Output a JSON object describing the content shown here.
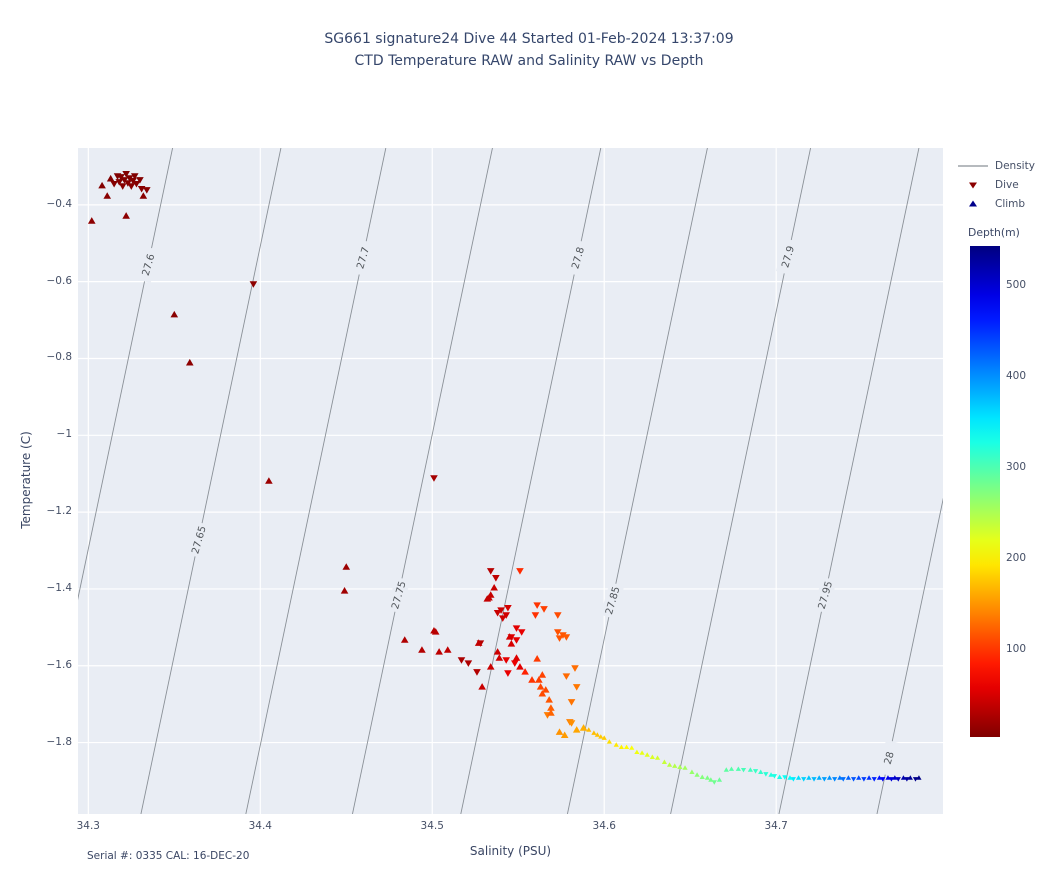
{
  "title": {
    "line1": "SG661 signature24 Dive 44 Started 01-Feb-2024 13:37:09",
    "line2": "CTD Temperature RAW and Salinity RAW vs Depth"
  },
  "footer_note": "Serial #: 0335  CAL: 16-DEC-20",
  "colors": {
    "page_bg": "#ffffff",
    "plot_bg": "#e9edf4",
    "grid": "#ffffff",
    "contour_line": "#8a9097",
    "contour_label": "#52575c",
    "title_text": "#35466b",
    "tick_text": "#454f66",
    "dive_legend": "#8b0000",
    "climb_legend": "#00008b"
  },
  "chart_data": {
    "type": "scatter",
    "title": "SG661 signature24 Dive 44 Started 01-Feb-2024 13:37:09 / CTD Temperature RAW and Salinity RAW vs Depth",
    "xlabel": "Salinity (PSU)",
    "ylabel": "Temperature (C)",
    "xlim": [
      34.294,
      34.797
    ],
    "ylim": [
      -1.986,
      -0.252
    ],
    "grid": true,
    "x_ticks": [
      {
        "v": 34.3,
        "label": "34.3"
      },
      {
        "v": 34.4,
        "label": "34.4"
      },
      {
        "v": 34.5,
        "label": "34.5"
      },
      {
        "v": 34.6,
        "label": "34.6"
      },
      {
        "v": 34.7,
        "label": "34.7"
      }
    ],
    "y_ticks": [
      {
        "v": -0.4,
        "label": "−0.4"
      },
      {
        "v": -0.6,
        "label": "−0.6"
      },
      {
        "v": -0.8,
        "label": "−0.8"
      },
      {
        "v": -1.0,
        "label": "−1"
      },
      {
        "v": -1.2,
        "label": "−1.2"
      },
      {
        "v": -1.4,
        "label": "−1.4"
      },
      {
        "v": -1.6,
        "label": "−1.6"
      },
      {
        "v": -1.8,
        "label": "−1.8"
      }
    ],
    "legend": {
      "position": "upper-right-outside",
      "entries": [
        {
          "label": "Density",
          "marker": "line",
          "color": "#8a9097"
        },
        {
          "label": "Dive",
          "marker": "triangle-down",
          "color": "#8b0000"
        },
        {
          "label": "Climb",
          "marker": "triangle-up",
          "color": "#00008b"
        }
      ]
    },
    "colorbar": {
      "label": "Depth(m)",
      "min": 5,
      "max": 544,
      "colormap": "jet-reversed (shallow = dark red, deep = navy)",
      "ticks": [
        {
          "v": 100,
          "label": "100"
        },
        {
          "v": 200,
          "label": "200"
        },
        {
          "v": 300,
          "label": "300"
        },
        {
          "v": 400,
          "label": "400"
        },
        {
          "v": 500,
          "label": "500"
        }
      ]
    },
    "density_contours": {
      "note": "sigma-t isopycnal lines, labeled, sloping up to the right",
      "ds_over_plot_height": 0.0814,
      "label_rotation_deg": -74,
      "lines": [
        {
          "value": "27.6",
          "s_at_top": 34.349,
          "label_t": -0.556
        },
        {
          "value": "27.65",
          "s_at_top": 34.412,
          "label_t": -1.272
        },
        {
          "value": "27.7",
          "s_at_top": 34.473,
          "label_t": -0.538
        },
        {
          "value": "27.75",
          "s_at_top": 34.535,
          "label_t": -1.416
        },
        {
          "value": "27.8",
          "s_at_top": 34.598,
          "label_t": -0.538
        },
        {
          "value": "27.85",
          "s_at_top": 34.66,
          "label_t": -1.43
        },
        {
          "value": "27.9",
          "s_at_top": 34.72,
          "label_t": -0.535
        },
        {
          "value": "27.95",
          "s_at_top": 34.783,
          "label_t": -1.416
        },
        {
          "value": "28",
          "s_at_top": 34.84,
          "label_t": -1.84
        }
      ]
    },
    "point_format": "[salinity_psu, temperature_c, depth_m]",
    "series": [
      {
        "name": "Dive",
        "marker": "triangle-down",
        "points": [
          [
            34.315,
            -0.345,
            8
          ],
          [
            34.317,
            -0.325,
            6
          ],
          [
            34.318,
            -0.34,
            7
          ],
          [
            34.319,
            -0.327,
            6
          ],
          [
            34.32,
            -0.351,
            9
          ],
          [
            34.321,
            -0.335,
            7
          ],
          [
            34.322,
            -0.319,
            5
          ],
          [
            34.323,
            -0.343,
            8
          ],
          [
            34.324,
            -0.33,
            6
          ],
          [
            34.325,
            -0.351,
            9
          ],
          [
            34.326,
            -0.337,
            7
          ],
          [
            34.327,
            -0.325,
            5
          ],
          [
            34.328,
            -0.345,
            8
          ],
          [
            34.33,
            -0.335,
            7
          ],
          [
            34.331,
            -0.358,
            10
          ],
          [
            34.334,
            -0.361,
            10
          ],
          [
            34.396,
            -0.606,
            12
          ],
          [
            34.501,
            -1.111,
            25
          ],
          [
            34.534,
            -1.353,
            35
          ],
          [
            34.537,
            -1.371,
            38
          ],
          [
            34.54,
            -1.455,
            45
          ],
          [
            34.543,
            -1.468,
            48
          ],
          [
            34.538,
            -1.462,
            44
          ],
          [
            34.541,
            -1.476,
            47
          ],
          [
            34.544,
            -1.449,
            50
          ],
          [
            34.546,
            -1.525,
            55
          ],
          [
            34.549,
            -1.502,
            57
          ],
          [
            34.552,
            -1.512,
            60
          ],
          [
            34.549,
            -1.533,
            58
          ],
          [
            34.548,
            -1.593,
            62
          ],
          [
            34.543,
            -1.585,
            59
          ],
          [
            34.528,
            -1.541,
            33
          ],
          [
            34.517,
            -1.585,
            28
          ],
          [
            34.521,
            -1.593,
            30
          ],
          [
            34.526,
            -1.616,
            32
          ],
          [
            34.544,
            -1.619,
            61
          ],
          [
            34.551,
            -1.353,
            95
          ],
          [
            34.561,
            -1.442,
            100
          ],
          [
            34.565,
            -1.452,
            105
          ],
          [
            34.573,
            -1.468,
            112
          ],
          [
            34.56,
            -1.468,
            98
          ],
          [
            34.573,
            -1.512,
            115
          ],
          [
            34.576,
            -1.52,
            118
          ],
          [
            34.578,
            -1.525,
            120
          ],
          [
            34.574,
            -1.528,
            117
          ],
          [
            34.583,
            -1.606,
            130
          ],
          [
            34.584,
            -1.655,
            135
          ],
          [
            34.581,
            -1.694,
            133
          ],
          [
            34.58,
            -1.746,
            140
          ],
          [
            34.578,
            -1.627,
            128
          ],
          [
            34.567,
            -1.728,
            138
          ],
          [
            34.581,
            -1.749,
            148
          ],
          [
            34.664,
            -1.903,
            283
          ],
          [
            34.681,
            -1.871,
            305
          ],
          [
            34.688,
            -1.874,
            312
          ],
          [
            34.694,
            -1.882,
            320
          ],
          [
            34.699,
            -1.887,
            328
          ],
          [
            34.705,
            -1.89,
            336
          ],
          [
            34.71,
            -1.895,
            352
          ],
          [
            34.716,
            -1.895,
            365
          ],
          [
            34.722,
            -1.895,
            378
          ],
          [
            34.728,
            -1.895,
            392
          ],
          [
            34.734,
            -1.895,
            405
          ],
          [
            34.739,
            -1.895,
            418
          ],
          [
            34.745,
            -1.895,
            432
          ],
          [
            34.751,
            -1.895,
            445
          ],
          [
            34.757,
            -1.895,
            458
          ],
          [
            34.762,
            -1.895,
            478
          ],
          [
            34.767,
            -1.895,
            495
          ],
          [
            34.771,
            -1.895,
            512
          ],
          [
            34.776,
            -1.895,
            528
          ],
          [
            34.781,
            -1.895,
            538
          ]
        ]
      },
      {
        "name": "Climb",
        "marker": "triangle-up",
        "points": [
          [
            34.308,
            -0.35,
            8
          ],
          [
            34.311,
            -0.377,
            10
          ],
          [
            34.313,
            -0.332,
            6
          ],
          [
            34.332,
            -0.377,
            10
          ],
          [
            34.322,
            -0.429,
            12
          ],
          [
            34.302,
            -0.442,
            12
          ],
          [
            34.35,
            -0.686,
            10
          ],
          [
            34.359,
            -0.811,
            12
          ],
          [
            34.405,
            -1.119,
            20
          ],
          [
            34.45,
            -1.343,
            20
          ],
          [
            34.449,
            -1.405,
            22
          ],
          [
            34.484,
            -1.533,
            30
          ],
          [
            34.494,
            -1.559,
            33
          ],
          [
            34.502,
            -1.512,
            36
          ],
          [
            34.504,
            -1.564,
            37
          ],
          [
            34.509,
            -1.559,
            39
          ],
          [
            34.501,
            -1.509,
            35
          ],
          [
            34.534,
            -1.416,
            42
          ],
          [
            34.533,
            -1.423,
            41
          ],
          [
            34.536,
            -1.397,
            43
          ],
          [
            34.532,
            -1.426,
            41
          ],
          [
            34.527,
            -1.541,
            40
          ],
          [
            34.545,
            -1.525,
            50
          ],
          [
            34.546,
            -1.543,
            51
          ],
          [
            34.534,
            -1.603,
            45
          ],
          [
            34.539,
            -1.58,
            47
          ],
          [
            34.538,
            -1.564,
            46
          ],
          [
            34.549,
            -1.58,
            55
          ],
          [
            34.551,
            -1.603,
            57
          ],
          [
            34.529,
            -1.655,
            44
          ],
          [
            34.554,
            -1.616,
            90
          ],
          [
            34.558,
            -1.637,
            100
          ],
          [
            34.562,
            -1.637,
            105
          ],
          [
            34.563,
            -1.655,
            110
          ],
          [
            34.566,
            -1.663,
            112
          ],
          [
            34.568,
            -1.689,
            118
          ],
          [
            34.569,
            -1.71,
            122
          ],
          [
            34.569,
            -1.723,
            125
          ],
          [
            34.564,
            -1.673,
            112
          ],
          [
            34.564,
            -1.624,
            108
          ],
          [
            34.561,
            -1.582,
            103
          ],
          [
            34.574,
            -1.773,
            150
          ],
          [
            34.577,
            -1.781,
            155
          ],
          [
            34.584,
            -1.767,
            160
          ],
          [
            34.588,
            -1.762,
            165
          ],
          [
            34.591,
            -1.767,
            170
          ],
          [
            34.594,
            -1.775,
            172
          ],
          [
            34.596,
            -1.78,
            175
          ],
          [
            34.598,
            -1.785,
            178
          ],
          [
            34.6,
            -1.788,
            180
          ],
          [
            34.603,
            -1.798,
            190
          ],
          [
            34.607,
            -1.806,
            195
          ],
          [
            34.61,
            -1.812,
            200
          ],
          [
            34.613,
            -1.812,
            205
          ],
          [
            34.616,
            -1.814,
            210
          ],
          [
            34.619,
            -1.825,
            215
          ],
          [
            34.622,
            -1.827,
            218
          ],
          [
            34.625,
            -1.832,
            222
          ],
          [
            34.628,
            -1.838,
            226
          ],
          [
            34.631,
            -1.84,
            230
          ],
          [
            34.635,
            -1.851,
            238
          ],
          [
            34.638,
            -1.858,
            243
          ],
          [
            34.641,
            -1.861,
            247
          ],
          [
            34.644,
            -1.864,
            252
          ],
          [
            34.647,
            -1.866,
            256
          ],
          [
            34.651,
            -1.877,
            262
          ],
          [
            34.654,
            -1.884,
            268
          ],
          [
            34.657,
            -1.89,
            272
          ],
          [
            34.66,
            -1.892,
            276
          ],
          [
            34.662,
            -1.897,
            280
          ],
          [
            34.667,
            -1.897,
            286
          ],
          [
            34.671,
            -1.871,
            292
          ],
          [
            34.674,
            -1.869,
            296
          ],
          [
            34.678,
            -1.869,
            300
          ],
          [
            34.685,
            -1.871,
            308
          ],
          [
            34.691,
            -1.877,
            315
          ],
          [
            34.697,
            -1.884,
            324
          ],
          [
            34.702,
            -1.89,
            332
          ],
          [
            34.708,
            -1.892,
            340
          ],
          [
            34.713,
            -1.892,
            358
          ],
          [
            34.719,
            -1.892,
            372
          ],
          [
            34.725,
            -1.892,
            385
          ],
          [
            34.731,
            -1.892,
            398
          ],
          [
            34.737,
            -1.892,
            412
          ],
          [
            34.742,
            -1.892,
            425
          ],
          [
            34.748,
            -1.892,
            438
          ],
          [
            34.754,
            -1.892,
            452
          ],
          [
            34.76,
            -1.892,
            468
          ],
          [
            34.765,
            -1.892,
            488
          ],
          [
            34.769,
            -1.892,
            505
          ],
          [
            34.774,
            -1.892,
            520
          ],
          [
            34.778,
            -1.892,
            533
          ],
          [
            34.783,
            -1.892,
            541
          ]
        ]
      }
    ]
  }
}
